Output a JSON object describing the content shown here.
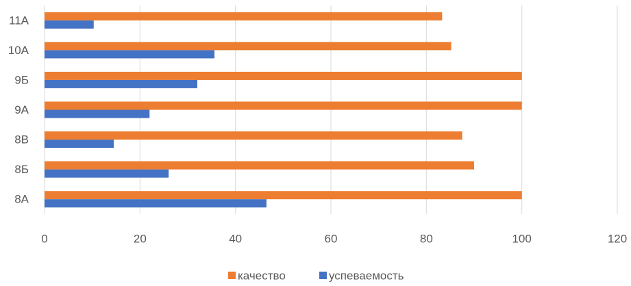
{
  "chart_data": {
    "type": "bar",
    "orientation": "horizontal",
    "categories": [
      "8А",
      "8Б",
      "8В",
      "9А",
      "9Б",
      "10А",
      "11А"
    ],
    "series": [
      {
        "name": "качество",
        "color": "#ed7d31",
        "values": [
          100,
          90,
          87.5,
          100,
          100,
          85.2,
          83.3
        ]
      },
      {
        "name": "успеваемость",
        "color": "#4472c4",
        "values": [
          46.5,
          26,
          14.5,
          22,
          32,
          35.6,
          10.3
        ]
      }
    ],
    "xlim": [
      0,
      120
    ],
    "xticks": [
      0,
      20,
      40,
      60,
      80,
      100,
      120
    ],
    "grid": true,
    "legend": "bottom"
  }
}
